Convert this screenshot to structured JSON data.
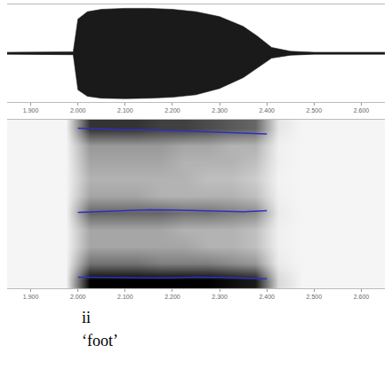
{
  "chart_data": [
    {
      "type": "area",
      "x": [
        1.85,
        1.9,
        1.95,
        1.99,
        2.0,
        2.02,
        2.05,
        2.1,
        2.15,
        2.2,
        2.25,
        2.3,
        2.35,
        2.38,
        2.41,
        2.45,
        2.5,
        2.55,
        2.6,
        2.65
      ],
      "series": [
        {
          "color": "#1a1a1a",
          "values": [
            0.02,
            0.02,
            0.02,
            0.03,
            0.7,
            0.85,
            0.9,
            0.92,
            0.92,
            0.9,
            0.85,
            0.75,
            0.55,
            0.35,
            0.12,
            0.04,
            0.02,
            0.02,
            0.02,
            0.02
          ]
        },
        {
          "color": "#1a1a1a",
          "values": [
            -0.02,
            -0.02,
            -0.02,
            -0.03,
            -0.75,
            -0.88,
            -0.92,
            -0.93,
            -0.92,
            -0.9,
            -0.85,
            -0.72,
            -0.5,
            -0.3,
            -0.1,
            -0.04,
            -0.02,
            -0.02,
            -0.02,
            -0.02
          ]
        }
      ],
      "xlim": [
        1.85,
        2.65
      ],
      "ylim": [
        -1,
        1
      ],
      "xticks": [
        {
          "value": 1.9,
          "label": "1.900"
        },
        {
          "value": 2.0,
          "label": "2.000"
        },
        {
          "value": 2.1,
          "label": "2.100"
        },
        {
          "value": 2.2,
          "label": "2.200"
        },
        {
          "value": 2.3,
          "label": "2.300"
        },
        {
          "value": 2.4,
          "label": "2.400"
        },
        {
          "value": 2.5,
          "label": "2.500"
        },
        {
          "value": 2.6,
          "label": "2.600"
        }
      ],
      "tick_labels": "x"
    },
    {
      "type": "heatmap",
      "x": [
        1.875,
        1.925,
        1.975,
        2.025,
        2.075,
        2.125,
        2.175,
        2.225,
        2.275,
        2.325,
        2.375,
        2.425,
        2.475,
        2.525,
        2.575,
        2.625
      ],
      "y": [
        250,
        750,
        1250,
        1750,
        2250,
        2750,
        3250,
        3750,
        4250,
        4750
      ],
      "cells": [
        [
          0.04,
          0.04,
          0.04,
          1,
          1,
          1,
          1,
          1,
          1,
          0.95,
          0.9,
          0.15,
          0.04,
          0.04,
          0.04,
          0.04
        ],
        [
          0.04,
          0.04,
          0.04,
          0.55,
          0.55,
          0.55,
          0.5,
          0.5,
          0.5,
          0.45,
          0.4,
          0.08,
          0.04,
          0.04,
          0.04,
          0.04
        ],
        [
          0.04,
          0.04,
          0.04,
          0.35,
          0.35,
          0.35,
          0.35,
          0.35,
          0.3,
          0.3,
          0.25,
          0.06,
          0.04,
          0.04,
          0.04,
          0.04
        ],
        [
          0.04,
          0.04,
          0.04,
          0.35,
          0.35,
          0.35,
          0.35,
          0.3,
          0.3,
          0.3,
          0.25,
          0.06,
          0.04,
          0.04,
          0.04,
          0.04
        ],
        [
          0.04,
          0.04,
          0.04,
          0.6,
          0.6,
          0.6,
          0.6,
          0.55,
          0.55,
          0.5,
          0.45,
          0.08,
          0.04,
          0.04,
          0.04,
          0.04
        ],
        [
          0.04,
          0.04,
          0.04,
          0.35,
          0.35,
          0.35,
          0.3,
          0.3,
          0.3,
          0.3,
          0.25,
          0.06,
          0.04,
          0.04,
          0.04,
          0.04
        ],
        [
          0.04,
          0.04,
          0.04,
          0.3,
          0.3,
          0.3,
          0.3,
          0.3,
          0.25,
          0.25,
          0.2,
          0.05,
          0.04,
          0.04,
          0.04,
          0.04
        ],
        [
          0.04,
          0.04,
          0.04,
          0.35,
          0.35,
          0.35,
          0.35,
          0.3,
          0.3,
          0.3,
          0.25,
          0.06,
          0.04,
          0.04,
          0.04,
          0.04
        ],
        [
          0.04,
          0.04,
          0.04,
          0.4,
          0.4,
          0.4,
          0.4,
          0.35,
          0.35,
          0.3,
          0.3,
          0.06,
          0.04,
          0.04,
          0.04,
          0.04
        ],
        [
          0.04,
          0.04,
          0.04,
          0.8,
          0.8,
          0.8,
          0.75,
          0.75,
          0.7,
          0.65,
          0.6,
          0.1,
          0.04,
          0.04,
          0.04,
          0.04
        ]
      ],
      "color_range": [
        0,
        1
      ],
      "series": [
        {
          "type": "line",
          "color": "#2f2fc8",
          "x": [
            2.0,
            2.05,
            2.1,
            2.15,
            2.2,
            2.25,
            2.3,
            2.35,
            2.4
          ],
          "values": [
            330,
            320,
            320,
            310,
            310,
            330,
            320,
            300,
            280
          ]
        },
        {
          "type": "line",
          "color": "#2f2fc8",
          "x": [
            2.0,
            2.05,
            2.1,
            2.15,
            2.2,
            2.25,
            2.3,
            2.35,
            2.4
          ],
          "values": [
            2250,
            2280,
            2300,
            2330,
            2320,
            2300,
            2280,
            2270,
            2300
          ]
        },
        {
          "type": "line",
          "color": "#2f2fc8",
          "x": [
            2.0,
            2.05,
            2.1,
            2.15,
            2.2,
            2.25,
            2.3,
            2.35,
            2.4
          ],
          "values": [
            4750,
            4720,
            4700,
            4700,
            4680,
            4660,
            4640,
            4600,
            4580
          ]
        }
      ],
      "xlim": [
        1.85,
        2.65
      ],
      "ylim": [
        0,
        5000
      ],
      "xticks": [
        {
          "value": 1.9,
          "label": "1.900"
        },
        {
          "value": 2.0,
          "label": "2.000"
        },
        {
          "value": 2.1,
          "label": "2.100"
        },
        {
          "value": 2.2,
          "label": "2.200"
        },
        {
          "value": 2.3,
          "label": "2.300"
        },
        {
          "value": 2.4,
          "label": "2.400"
        },
        {
          "value": 2.5,
          "label": "2.500"
        },
        {
          "value": 2.6,
          "label": "2.600"
        }
      ],
      "tick_labels": "x"
    }
  ],
  "caption": {
    "text": "ii",
    "gloss": "‘foot’"
  }
}
